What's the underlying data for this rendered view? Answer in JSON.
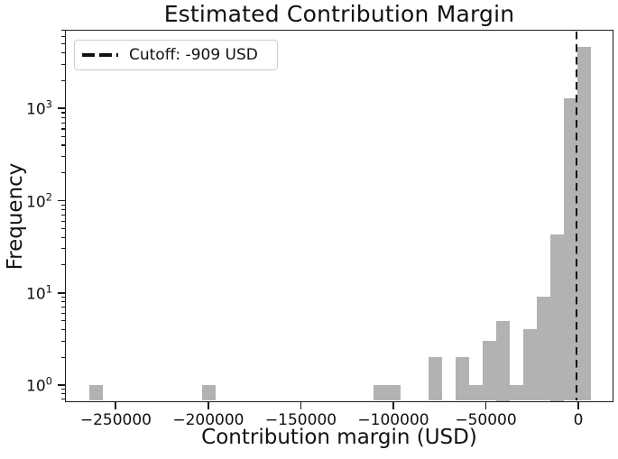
{
  "title": "Estimated Contribution Margin",
  "legend": {
    "label": "Cutoff: -909 USD",
    "line_color": "#111111",
    "line_style": "dashed"
  },
  "chart_data": {
    "type": "bar",
    "subtype": "histogram",
    "title": "Estimated Contribution Margin",
    "xlabel": "Contribution margin (USD)",
    "ylabel": "Frequency",
    "yscale": "log",
    "grid": false,
    "legend_position": "upper-left",
    "bar_color": "#b2b2b2",
    "cutoff_usd": -909,
    "cutoff_line_color": "#111111",
    "xlim": [
      -277500,
      19000
    ],
    "ylim": [
      0.65,
      7150
    ],
    "x_ticks": [
      {
        "value": -250000,
        "label": "−250000"
      },
      {
        "value": -200000,
        "label": "−200000"
      },
      {
        "value": -150000,
        "label": "−150000"
      },
      {
        "value": -100000,
        "label": "−100000"
      },
      {
        "value": -50000,
        "label": "−50000"
      },
      {
        "value": 0,
        "label": "0"
      }
    ],
    "y_ticks": [
      {
        "value": 1,
        "exp": "0"
      },
      {
        "value": 10,
        "exp": "1"
      },
      {
        "value": 100,
        "exp": "2"
      },
      {
        "value": 1000,
        "exp": "3"
      }
    ],
    "bins": [
      {
        "left": -264200,
        "right": -256900,
        "count": 1
      },
      {
        "left": -203200,
        "right": -195900,
        "count": 1
      },
      {
        "left": -110500,
        "right": -103200,
        "count": 1
      },
      {
        "left": -103200,
        "right": -95900,
        "count": 1
      },
      {
        "left": -81200,
        "right": -73900,
        "count": 2
      },
      {
        "left": -66600,
        "right": -59250,
        "count": 2
      },
      {
        "left": -59250,
        "right": -51950,
        "count": 1
      },
      {
        "left": -51950,
        "right": -44600,
        "count": 3
      },
      {
        "left": -44600,
        "right": -37300,
        "count": 5
      },
      {
        "left": -37300,
        "right": -30000,
        "count": 1
      },
      {
        "left": -30000,
        "right": -22700,
        "count": 4
      },
      {
        "left": -22700,
        "right": -15350,
        "count": 9
      },
      {
        "left": -15350,
        "right": -8050,
        "count": 43
      },
      {
        "left": -8050,
        "right": -730,
        "count": 1300
      },
      {
        "left": -730,
        "right": 6600,
        "count": 4700
      }
    ]
  }
}
